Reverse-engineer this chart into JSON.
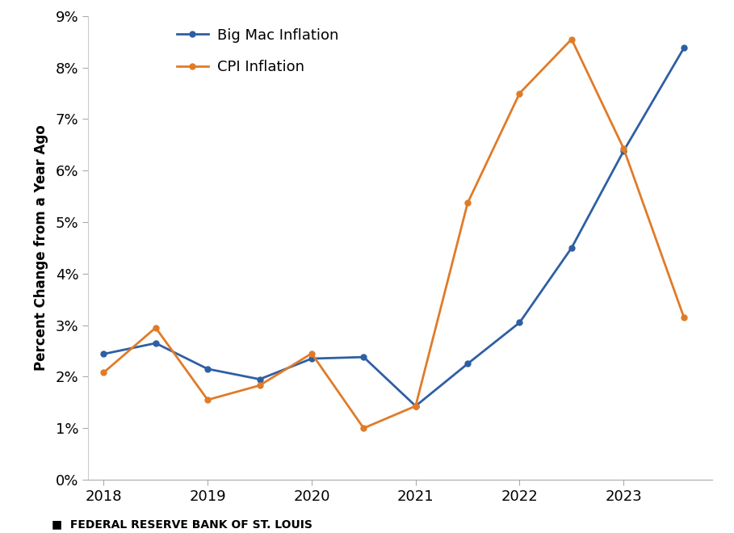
{
  "big_mac": {
    "x": [
      2018.0,
      2018.5,
      2019.0,
      2019.5,
      2020.0,
      2020.5,
      2021.0,
      2021.5,
      2022.0,
      2022.5,
      2023.0,
      2023.58
    ],
    "y": [
      0.0244,
      0.0265,
      0.0215,
      0.0195,
      0.0235,
      0.0238,
      0.0143,
      0.0225,
      0.0305,
      0.045,
      0.0638,
      0.0838
    ]
  },
  "cpi": {
    "x": [
      2018.0,
      2018.5,
      2019.0,
      2019.5,
      2020.0,
      2020.5,
      2021.0,
      2021.5,
      2022.0,
      2022.5,
      2023.0,
      2023.58
    ],
    "y": [
      0.0208,
      0.0295,
      0.0155,
      0.0183,
      0.0245,
      0.01,
      0.0143,
      0.0537,
      0.075,
      0.0855,
      0.0643,
      0.0315
    ]
  },
  "big_mac_color": "#2E5FA3",
  "cpi_color": "#E07B28",
  "big_mac_label": "Big Mac Inflation",
  "cpi_label": "CPI Inflation",
  "ylabel": "Percent Change from a Year Ago",
  "footer": "■  FEDERAL RESERVE BANK OF ST. LOUIS",
  "ylim": [
    0,
    0.09
  ],
  "xlim": [
    2017.85,
    2023.85
  ],
  "yticks": [
    0.0,
    0.01,
    0.02,
    0.03,
    0.04,
    0.05,
    0.06,
    0.07,
    0.08,
    0.09
  ],
  "xticks": [
    2018,
    2019,
    2020,
    2021,
    2022,
    2023
  ],
  "marker": "o",
  "markersize": 5,
  "linewidth": 2.0,
  "tick_fontsize": 13,
  "ylabel_fontsize": 12,
  "legend_fontsize": 13
}
